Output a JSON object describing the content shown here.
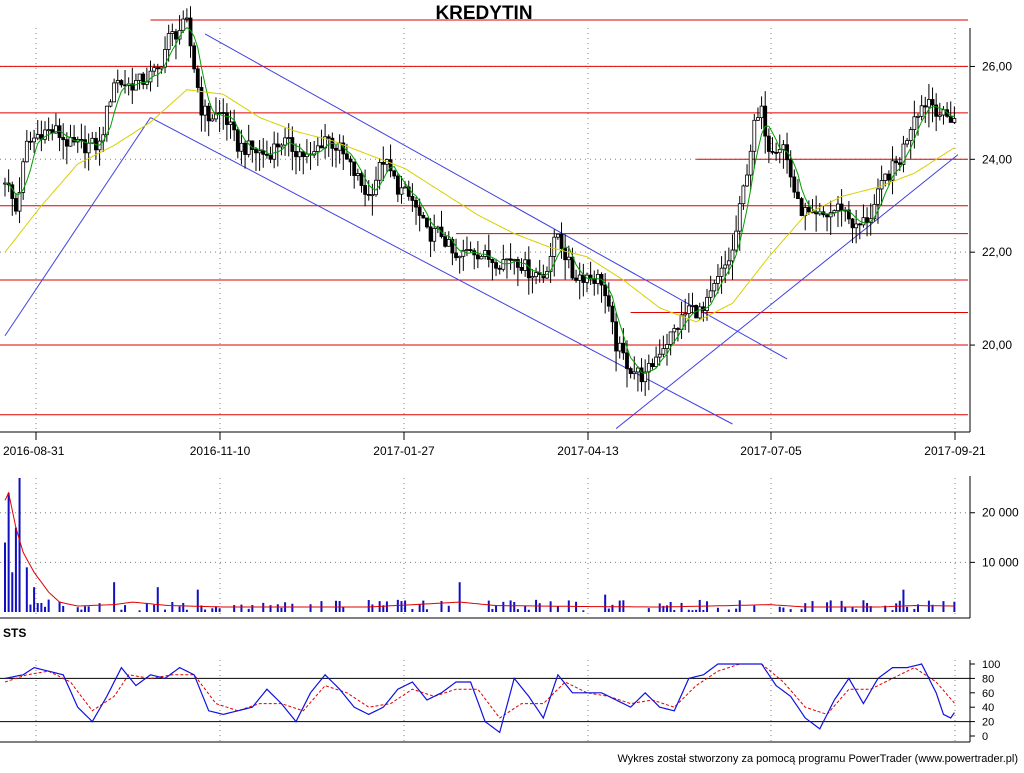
{
  "title": "KREDYTIN",
  "footer": "Wykres został stworzony za pomocą programu PowerTrader (www.powertrader.pl)",
  "colors": {
    "candle": "#000000",
    "support_resistance": "#e00000",
    "trend_channel": "#4040e0",
    "ma_short": "#00a000",
    "ma_long": "#d8d000",
    "volume_bar": "#1010c0",
    "volume_avg": "#e00000",
    "sts_k": "#1010e0",
    "sts_d": "#e00000",
    "grid": "#808080"
  },
  "chart_data": [
    {
      "type": "candlestick",
      "name": "price",
      "x_tick_labels": [
        "2016-08-31",
        "2016-11-10",
        "2017-01-27",
        "2017-04-13",
        "2017-07-05",
        "2017-09-21"
      ],
      "x_tick_index": [
        0,
        50,
        100,
        150,
        200,
        260
      ],
      "y_axis_labels": [
        "20,00",
        "22,00",
        "24,00",
        "26,00"
      ],
      "y_ticks": [
        20,
        22,
        24,
        26
      ],
      "ylim": [
        18.3,
        27.0
      ],
      "n_sessions": 262,
      "close_path": [
        [
          0,
          23.6
        ],
        [
          3,
          22.9
        ],
        [
          6,
          24.3
        ],
        [
          10,
          24.6
        ],
        [
          14,
          24.6
        ],
        [
          18,
          24.3
        ],
        [
          22,
          24.3
        ],
        [
          26,
          24.3
        ],
        [
          30,
          25.7
        ],
        [
          34,
          25.6
        ],
        [
          38,
          25.7
        ],
        [
          42,
          25.9
        ],
        [
          45,
          26.6
        ],
        [
          48,
          26.8
        ],
        [
          50,
          26.9
        ],
        [
          52,
          26.0
        ],
        [
          54,
          25.1
        ],
        [
          56,
          24.9
        ],
        [
          60,
          25.0
        ],
        [
          64,
          24.3
        ],
        [
          68,
          24.2
        ],
        [
          72,
          24.1
        ],
        [
          76,
          24.4
        ],
        [
          80,
          24.2
        ],
        [
          84,
          24.0
        ],
        [
          88,
          24.5
        ],
        [
          92,
          24.2
        ],
        [
          96,
          23.7
        ],
        [
          100,
          23.2
        ],
        [
          104,
          24.0
        ],
        [
          108,
          23.4
        ],
        [
          112,
          23.1
        ],
        [
          116,
          22.4
        ],
        [
          120,
          22.4
        ],
        [
          124,
          21.8
        ],
        [
          128,
          22.1
        ],
        [
          132,
          21.9
        ],
        [
          136,
          21.8
        ],
        [
          140,
          21.9
        ],
        [
          144,
          21.6
        ],
        [
          148,
          21.5
        ],
        [
          152,
          22.4
        ],
        [
          156,
          21.5
        ],
        [
          160,
          21.5
        ],
        [
          164,
          21.4
        ],
        [
          168,
          20.0
        ],
        [
          172,
          19.5
        ],
        [
          176,
          19.3
        ],
        [
          180,
          19.9
        ],
        [
          184,
          20.3
        ],
        [
          188,
          20.8
        ],
        [
          192,
          20.7
        ],
        [
          196,
          21.4
        ],
        [
          200,
          22.0
        ],
        [
          204,
          23.8
        ],
        [
          206,
          24.7
        ],
        [
          208,
          25.0
        ],
        [
          210,
          24.3
        ],
        [
          214,
          24.3
        ],
        [
          218,
          23.0
        ],
        [
          222,
          22.7
        ],
        [
          226,
          22.8
        ],
        [
          230,
          23.0
        ],
        [
          234,
          22.5
        ],
        [
          238,
          22.8
        ],
        [
          242,
          23.6
        ],
        [
          246,
          24.0
        ],
        [
          250,
          25.0
        ],
        [
          254,
          25.3
        ],
        [
          258,
          24.9
        ],
        [
          262,
          24.9
        ]
      ],
      "ma_long_path": [
        [
          0,
          22.0
        ],
        [
          10,
          23.0
        ],
        [
          20,
          23.9
        ],
        [
          30,
          24.3
        ],
        [
          40,
          24.8
        ],
        [
          50,
          25.5
        ],
        [
          60,
          25.4
        ],
        [
          70,
          24.9
        ],
        [
          80,
          24.6
        ],
        [
          90,
          24.4
        ],
        [
          100,
          24.1
        ],
        [
          110,
          23.8
        ],
        [
          120,
          23.3
        ],
        [
          130,
          22.8
        ],
        [
          140,
          22.4
        ],
        [
          150,
          22.1
        ],
        [
          160,
          21.9
        ],
        [
          170,
          21.4
        ],
        [
          180,
          20.8
        ],
        [
          190,
          20.5
        ],
        [
          200,
          20.9
        ],
        [
          210,
          21.9
        ],
        [
          220,
          22.8
        ],
        [
          230,
          23.2
        ],
        [
          240,
          23.4
        ],
        [
          250,
          23.7
        ],
        [
          262,
          24.3
        ]
      ],
      "horizontal_levels": [
        {
          "y": 27.0,
          "x_from": 40,
          "x_to": 262
        },
        {
          "y": 26.0,
          "x_from": 0,
          "x_to": 262
        },
        {
          "y": 25.0,
          "x_from": 0,
          "x_to": 262
        },
        {
          "y": 24.0,
          "x_from": 190,
          "x_to": 262
        },
        {
          "y": 23.0,
          "x_from": 0,
          "x_to": 262
        },
        {
          "y": 22.4,
          "x_from": 124,
          "x_to": 262
        },
        {
          "y": 21.4,
          "x_from": 0,
          "x_to": 262
        },
        {
          "y": 20.7,
          "x_from": 172,
          "x_to": 262
        },
        {
          "y": 20.0,
          "x_from": 0,
          "x_to": 262
        },
        {
          "y": 18.5,
          "x_from": 0,
          "x_to": 262
        }
      ],
      "trend_lines": [
        {
          "from": [
            0,
            20.2
          ],
          "to": [
            40,
            24.9
          ]
        },
        {
          "from": [
            40,
            24.9
          ],
          "to": [
            200,
            18.3
          ]
        },
        {
          "from": [
            55,
            26.7
          ],
          "to": [
            215,
            19.7
          ]
        },
        {
          "from": [
            168,
            18.2
          ],
          "to": [
            262,
            24.1
          ]
        }
      ]
    },
    {
      "type": "bar",
      "name": "volume",
      "y_axis_labels": [
        "10 000",
        "20 000"
      ],
      "y_ticks": [
        10000,
        20000
      ],
      "ylim": [
        0,
        27000
      ],
      "spikes": [
        [
          0,
          14000
        ],
        [
          1,
          24000
        ],
        [
          2,
          8000
        ],
        [
          3,
          17000
        ],
        [
          4,
          27000
        ],
        [
          6,
          9000
        ],
        [
          8,
          5000
        ],
        [
          12,
          2500
        ],
        [
          30,
          6000
        ],
        [
          42,
          5000
        ],
        [
          53,
          4500
        ],
        [
          125,
          6000
        ],
        [
          165,
          3500
        ],
        [
          247,
          4500
        ]
      ],
      "avg_path": [
        [
          0,
          22500
        ],
        [
          1,
          24000
        ],
        [
          3,
          17000
        ],
        [
          5,
          12000
        ],
        [
          8,
          8000
        ],
        [
          10,
          6000
        ],
        [
          12,
          4000
        ],
        [
          15,
          2000
        ],
        [
          20,
          1200
        ],
        [
          30,
          1500
        ],
        [
          35,
          2000
        ],
        [
          45,
          1300
        ],
        [
          60,
          1000
        ],
        [
          80,
          1000
        ],
        [
          100,
          1000
        ],
        [
          115,
          1600
        ],
        [
          125,
          2000
        ],
        [
          135,
          1300
        ],
        [
          160,
          1100
        ],
        [
          180,
          1000
        ],
        [
          200,
          1300
        ],
        [
          210,
          1500
        ],
        [
          220,
          1000
        ],
        [
          240,
          1000
        ],
        [
          250,
          1300
        ],
        [
          262,
          1200
        ]
      ]
    },
    {
      "type": "line",
      "name": "STS",
      "title": "STS",
      "y_axis_labels": [
        "0",
        "20",
        "40",
        "60",
        "80",
        "100"
      ],
      "y_ticks": [
        0,
        20,
        40,
        60,
        80,
        100
      ],
      "ylim": [
        0,
        100
      ],
      "ref_lines": [
        20,
        80
      ],
      "k_path": [
        [
          0,
          80
        ],
        [
          5,
          85
        ],
        [
          8,
          95
        ],
        [
          12,
          90
        ],
        [
          16,
          85
        ],
        [
          20,
          40
        ],
        [
          24,
          20
        ],
        [
          28,
          55
        ],
        [
          32,
          95
        ],
        [
          36,
          70
        ],
        [
          40,
          85
        ],
        [
          44,
          80
        ],
        [
          48,
          95
        ],
        [
          52,
          85
        ],
        [
          56,
          35
        ],
        [
          60,
          30
        ],
        [
          64,
          35
        ],
        [
          68,
          40
        ],
        [
          72,
          65
        ],
        [
          76,
          45
        ],
        [
          80,
          20
        ],
        [
          84,
          60
        ],
        [
          88,
          85
        ],
        [
          92,
          65
        ],
        [
          96,
          40
        ],
        [
          100,
          30
        ],
        [
          104,
          40
        ],
        [
          108,
          65
        ],
        [
          112,
          75
        ],
        [
          116,
          50
        ],
        [
          120,
          60
        ],
        [
          124,
          75
        ],
        [
          128,
          75
        ],
        [
          132,
          20
        ],
        [
          136,
          5
        ],
        [
          140,
          80
        ],
        [
          144,
          55
        ],
        [
          148,
          25
        ],
        [
          152,
          85
        ],
        [
          156,
          60
        ],
        [
          160,
          60
        ],
        [
          164,
          60
        ],
        [
          168,
          50
        ],
        [
          172,
          40
        ],
        [
          176,
          60
        ],
        [
          180,
          40
        ],
        [
          184,
          35
        ],
        [
          188,
          80
        ],
        [
          192,
          85
        ],
        [
          196,
          100
        ],
        [
          200,
          100
        ],
        [
          204,
          100
        ],
        [
          208,
          100
        ],
        [
          212,
          70
        ],
        [
          216,
          55
        ],
        [
          220,
          25
        ],
        [
          224,
          10
        ],
        [
          228,
          50
        ],
        [
          232,
          80
        ],
        [
          236,
          45
        ],
        [
          240,
          80
        ],
        [
          244,
          95
        ],
        [
          248,
          95
        ],
        [
          252,
          100
        ],
        [
          256,
          60
        ],
        [
          258,
          30
        ],
        [
          260,
          25
        ],
        [
          262,
          40
        ]
      ],
      "d_path": [
        [
          0,
          75
        ],
        [
          6,
          85
        ],
        [
          12,
          90
        ],
        [
          18,
          75
        ],
        [
          24,
          35
        ],
        [
          30,
          55
        ],
        [
          34,
          85
        ],
        [
          40,
          80
        ],
        [
          46,
          85
        ],
        [
          52,
          85
        ],
        [
          58,
          45
        ],
        [
          64,
          35
        ],
        [
          70,
          45
        ],
        [
          76,
          45
        ],
        [
          82,
          35
        ],
        [
          88,
          70
        ],
        [
          94,
          60
        ],
        [
          100,
          40
        ],
        [
          106,
          45
        ],
        [
          112,
          65
        ],
        [
          118,
          55
        ],
        [
          124,
          65
        ],
        [
          130,
          65
        ],
        [
          136,
          25
        ],
        [
          142,
          45
        ],
        [
          148,
          45
        ],
        [
          154,
          75
        ],
        [
          160,
          60
        ],
        [
          166,
          55
        ],
        [
          172,
          45
        ],
        [
          178,
          50
        ],
        [
          184,
          40
        ],
        [
          190,
          70
        ],
        [
          196,
          90
        ],
        [
          202,
          100
        ],
        [
          208,
          100
        ],
        [
          214,
          75
        ],
        [
          220,
          40
        ],
        [
          226,
          30
        ],
        [
          232,
          65
        ],
        [
          238,
          65
        ],
        [
          244,
          80
        ],
        [
          250,
          95
        ],
        [
          256,
          75
        ],
        [
          262,
          40
        ]
      ]
    }
  ]
}
